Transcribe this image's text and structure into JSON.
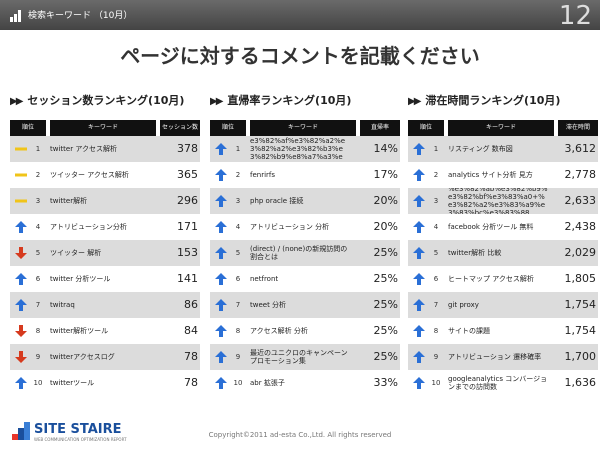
{
  "header": {
    "title": "検索キーワード （10月）",
    "page_number": "12"
  },
  "headline": "ページに対するコメントを記載ください",
  "colors": {
    "up": "#2a6fd6",
    "down": "#d63a1e",
    "flat": "#f0c419"
  },
  "panels": [
    {
      "title": "セッション数ランキング(10月)",
      "arrows": "▶▶",
      "columns": [
        "順位",
        "キーワード",
        "セッション数"
      ],
      "rows": [
        {
          "rank": "1",
          "trend": "flat",
          "keyword": "twitter アクセス解析",
          "value": "378"
        },
        {
          "rank": "2",
          "trend": "flat",
          "keyword": "ツイッター アクセス解析",
          "value": "365"
        },
        {
          "rank": "3",
          "trend": "flat",
          "keyword": "twitter解析",
          "value": "296"
        },
        {
          "rank": "4",
          "trend": "up",
          "keyword": "アトリビューション分析",
          "value": "171"
        },
        {
          "rank": "5",
          "trend": "down",
          "keyword": "ツイッター 解析",
          "value": "153"
        },
        {
          "rank": "6",
          "trend": "up",
          "keyword": "twitter 分析ツール",
          "value": "141"
        },
        {
          "rank": "7",
          "trend": "up",
          "keyword": "twitraq",
          "value": "86"
        },
        {
          "rank": "8",
          "trend": "down",
          "keyword": "twitter解析ツール",
          "value": "84"
        },
        {
          "rank": "9",
          "trend": "down",
          "keyword": "twitterアクセスログ",
          "value": "78"
        },
        {
          "rank": "10",
          "trend": "up",
          "keyword": "twitterツール",
          "value": "78"
        }
      ]
    },
    {
      "title": "直帰率ランキング(10月)",
      "arrows": "▶▶",
      "columns": [
        "順位",
        "キーワード",
        "直帰率"
      ],
      "rows": [
        {
          "rank": "1",
          "trend": "up",
          "keyword": "%e3%82%a3%e3%82%a2%e3%82%af%e3%82%a2%e3%82%a2%e3%82%b3%e3%82%b9%e8%a7%a3%e6%9e%90",
          "value": "14%"
        },
        {
          "rank": "2",
          "trend": "up",
          "keyword": "fenrirfs",
          "value": "17%"
        },
        {
          "rank": "3",
          "trend": "up",
          "keyword": "php oracle 接続",
          "value": "20%"
        },
        {
          "rank": "4",
          "trend": "up",
          "keyword": "アトリビューション 分析",
          "value": "20%"
        },
        {
          "rank": "5",
          "trend": "up",
          "keyword": "(direct) / (none)の新規訪問の割合とは",
          "value": "25%"
        },
        {
          "rank": "6",
          "trend": "up",
          "keyword": "netfront",
          "value": "25%"
        },
        {
          "rank": "7",
          "trend": "up",
          "keyword": "tweet 分析",
          "value": "25%"
        },
        {
          "rank": "8",
          "trend": "up",
          "keyword": "アクセス解析 分析",
          "value": "25%"
        },
        {
          "rank": "9",
          "trend": "up",
          "keyword": "最近のユニクロのキャンペーンプロモーション集",
          "value": "25%"
        },
        {
          "rank": "10",
          "trend": "up",
          "keyword": "abr 拡張子",
          "value": "33%"
        }
      ]
    },
    {
      "title": "滞在時間ランキング(10月)",
      "arrows": "▶▶",
      "columns": [
        "順位",
        "キーワード",
        "滞在時間"
      ],
      "rows": [
        {
          "rank": "1",
          "trend": "up",
          "keyword": "リスティング 数布図",
          "value": "3,612"
        },
        {
          "rank": "2",
          "trend": "up",
          "keyword": "analytics サイト分析 見方",
          "value": "2,778"
        },
        {
          "rank": "3",
          "trend": "up",
          "keyword": "%e3%82%ab%e3%82%b9%e3%82%bf%e3%83%a0+%e3%82%a2%e3%83%a9%e3%83%bc%e3%83%88",
          "value": "2,633"
        },
        {
          "rank": "4",
          "trend": "up",
          "keyword": "facebook 分析ツール 無料",
          "value": "2,438"
        },
        {
          "rank": "5",
          "trend": "up",
          "keyword": "twitter解析 比較",
          "value": "2,029"
        },
        {
          "rank": "6",
          "trend": "up",
          "keyword": "ヒートマップ アクセス解析",
          "value": "1,805"
        },
        {
          "rank": "7",
          "trend": "up",
          "keyword": "git proxy",
          "value": "1,754"
        },
        {
          "rank": "8",
          "trend": "up",
          "keyword": "サイトの課題",
          "value": "1,754"
        },
        {
          "rank": "9",
          "trend": "up",
          "keyword": "アトリビューション 遷移確率",
          "value": "1,700"
        },
        {
          "rank": "10",
          "trend": "up",
          "keyword": "googleanalytics コンバージョンまでの訪問数",
          "value": "1,636"
        }
      ]
    }
  ],
  "footer": {
    "logo_name": "SITE STAIRE",
    "logo_sub": "WEB COMMUNICATION OPTIMIZATION REPORT",
    "copyright": "Copyright©2011 ad-esta Co.,Ltd. All rights reserved"
  }
}
